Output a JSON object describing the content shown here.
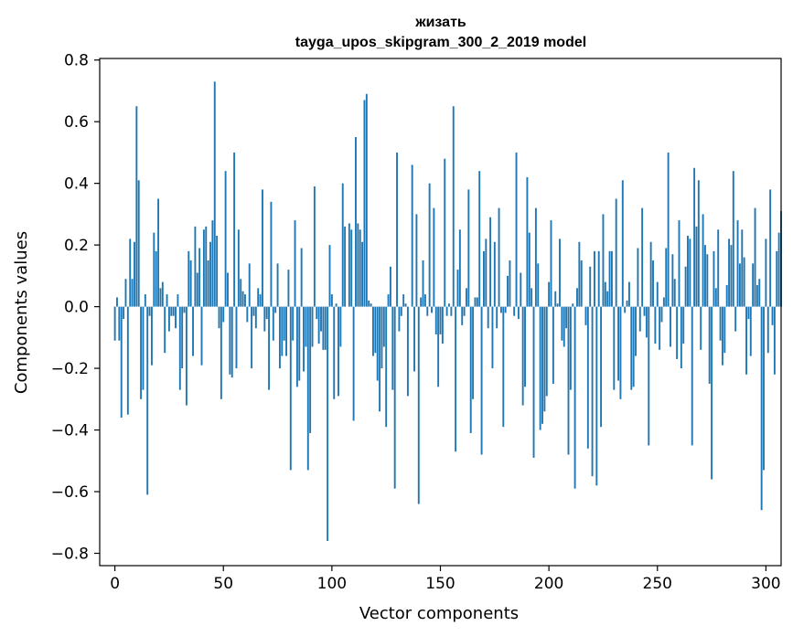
{
  "chart_data": {
    "type": "bar",
    "title": "жизать",
    "subtitle": "tayga_upos_skipgram_300_2_2019 model",
    "xlabel": "Vector components",
    "ylabel": "Components values",
    "xlim": [
      -7,
      307
    ],
    "ylim": [
      -0.84,
      0.805
    ],
    "xticks": [
      0,
      50,
      100,
      150,
      200,
      250,
      300
    ],
    "xtick_labels": [
      "0",
      "50",
      "100",
      "150",
      "200",
      "250",
      "300"
    ],
    "yticks": [
      -0.8,
      -0.6,
      -0.4,
      -0.2,
      0.0,
      0.2,
      0.4,
      0.6,
      0.8
    ],
    "ytick_labels": [
      "−0.8",
      "−0.6",
      "−0.4",
      "−0.2",
      "0.0",
      "0.2",
      "0.4",
      "0.6",
      "0.8"
    ],
    "grid": false,
    "bar_color": "#1f77b4",
    "x": "0..299",
    "values": [
      -0.11,
      0.03,
      -0.11,
      -0.36,
      -0.04,
      0.09,
      -0.35,
      0.22,
      0.09,
      0.21,
      0.65,
      0.41,
      -0.3,
      -0.27,
      0.04,
      -0.61,
      -0.03,
      -0.19,
      0.24,
      0.18,
      0.35,
      0.06,
      0.08,
      -0.15,
      0.04,
      -0.08,
      -0.03,
      -0.03,
      -0.07,
      0.04,
      -0.27,
      -0.2,
      -0.02,
      -0.32,
      0.18,
      0.15,
      -0.16,
      0.26,
      0.11,
      0.19,
      -0.19,
      0.25,
      0.26,
      0.15,
      0.21,
      0.28,
      0.73,
      0.23,
      -0.07,
      -0.3,
      -0.05,
      0.44,
      0.11,
      -0.22,
      -0.23,
      0.5,
      -0.2,
      0.25,
      0.09,
      0.05,
      0.04,
      -0.05,
      0.14,
      -0.2,
      -0.03,
      -0.07,
      0.06,
      0.04,
      0.38,
      -0.08,
      -0.04,
      -0.27,
      0.34,
      -0.11,
      -0.02,
      0.14,
      -0.2,
      -0.16,
      -0.11,
      -0.16,
      0.12,
      -0.53,
      -0.11,
      0.28,
      -0.26,
      -0.24,
      0.19,
      -0.21,
      -0.13,
      -0.53,
      -0.41,
      -0.13,
      0.39,
      -0.04,
      -0.12,
      -0.08,
      -0.14,
      -0.14,
      -0.76,
      0.2,
      0.04,
      -0.3,
      0.01,
      -0.29,
      -0.13,
      0.4,
      0.26,
      0.0,
      0.27,
      0.25,
      -0.37,
      0.55,
      0.27,
      0.25,
      0.21,
      0.67,
      0.69,
      0.02,
      0.01,
      -0.16,
      -0.15,
      -0.24,
      -0.34,
      -0.2,
      -0.13,
      -0.39,
      0.04,
      0.13,
      -0.27,
      -0.59,
      0.5,
      -0.08,
      -0.03,
      0.04,
      0.01,
      -0.29,
      0.0,
      0.46,
      -0.21,
      0.3,
      -0.64,
      0.03,
      0.15,
      0.04,
      -0.03,
      0.4,
      -0.02,
      0.32,
      -0.09,
      -0.26,
      -0.09,
      -0.12,
      0.48,
      -0.03,
      0.01,
      -0.03,
      0.65,
      -0.47,
      0.12,
      0.25,
      -0.06,
      -0.03,
      0.06,
      0.38,
      -0.41,
      -0.3,
      0.03,
      0.03,
      0.44,
      -0.48,
      0.18,
      0.22,
      -0.07,
      0.29,
      -0.2,
      0.21,
      -0.07,
      0.32,
      -0.02,
      -0.39,
      -0.02,
      0.1,
      0.15,
      0.0,
      -0.03,
      0.5,
      -0.04,
      0.11,
      -0.32,
      -0.26,
      0.42,
      0.24,
      0.06,
      -0.49,
      0.32,
      0.14,
      -0.4,
      -0.38,
      -0.34,
      -0.29,
      0.08,
      0.28,
      -0.25,
      0.05,
      0.01,
      0.22,
      -0.11,
      -0.13,
      -0.07,
      -0.48,
      -0.27,
      0.01,
      -0.59,
      0.06,
      0.21,
      0.15,
      0.0,
      -0.06,
      -0.46,
      0.13,
      -0.55,
      0.18,
      -0.58,
      0.18,
      -0.39,
      0.3,
      0.08,
      0.05,
      0.18,
      0.18,
      -0.27,
      0.35,
      -0.24,
      -0.3,
      0.41,
      -0.02,
      0.02,
      0.08,
      -0.27,
      -0.26,
      -0.16,
      0.19,
      -0.08,
      0.32,
      -0.03,
      -0.1,
      -0.45,
      0.21,
      0.15,
      -0.12,
      0.08,
      -0.14,
      -0.05,
      0.03,
      0.19,
      0.5,
      -0.13,
      0.17,
      0.09,
      -0.17,
      0.28,
      -0.2,
      -0.12,
      0.13,
      0.23,
      0.22,
      -0.45,
      0.45,
      0.26,
      0.41,
      -0.14,
      0.3,
      0.2,
      0.17,
      -0.25,
      -0.56,
      0.18,
      0.06,
      0.25,
      -0.11,
      -0.19,
      -0.15,
      0.07,
      0.22,
      0.2,
      0.44,
      -0.08,
      0.28,
      0.14,
      0.25,
      0.16,
      -0.22,
      -0.04,
      -0.16,
      0.14,
      0.32,
      0.07,
      0.09,
      -0.66,
      -0.53,
      0.22,
      -0.15,
      0.38,
      -0.06,
      -0.22,
      0.18,
      0.24,
      0.31,
      0.0
    ]
  }
}
